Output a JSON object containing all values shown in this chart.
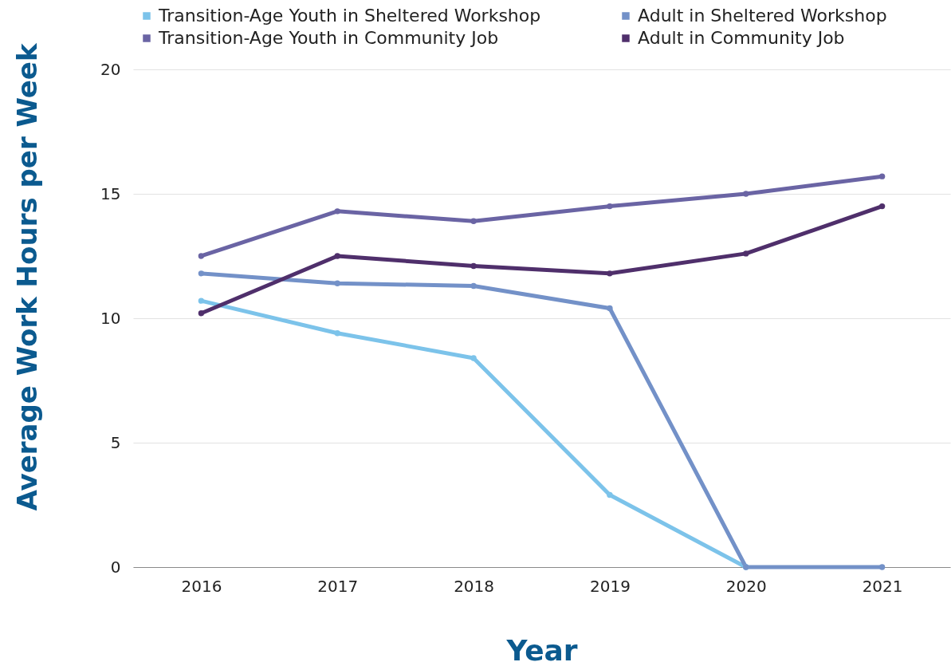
{
  "chart_data": {
    "type": "line",
    "xlabel": "Year",
    "ylabel": "Average Work Hours per Week",
    "categories": [
      "2016",
      "2017",
      "2018",
      "2019",
      "2020",
      "2021"
    ],
    "series": [
      {
        "name": "Transition-Age Youth in Sheltered Workshop",
        "color": "#7cc3ea",
        "values": [
          10.7,
          9.4,
          8.4,
          2.9,
          0,
          null
        ]
      },
      {
        "name": "Adult in Sheltered Workshop",
        "color": "#7391c8",
        "values": [
          11.8,
          11.4,
          11.3,
          10.4,
          0,
          0
        ]
      },
      {
        "name": "Transition-Age Youth in Community Job",
        "color": "#6a64a4",
        "values": [
          12.5,
          14.3,
          13.9,
          14.5,
          15.0,
          15.7
        ]
      },
      {
        "name": "Adult in Community Job",
        "color": "#4f2f6b",
        "values": [
          10.2,
          12.5,
          12.1,
          11.8,
          12.6,
          14.5
        ]
      }
    ],
    "ylim": [
      0,
      20
    ],
    "yticks": [
      0,
      5,
      10,
      15,
      20
    ],
    "grid": "y",
    "legend": "top",
    "marker": "circle",
    "line_style": "solid"
  }
}
